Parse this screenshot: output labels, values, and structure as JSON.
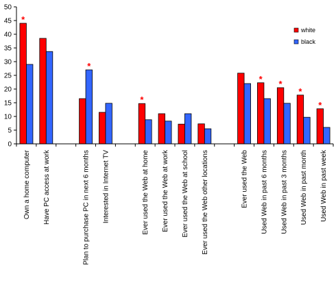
{
  "chart_data": {
    "type": "bar",
    "ylim": [
      0,
      50
    ],
    "ytick_step": 5,
    "grid": false,
    "legend_position": "top-right",
    "categories": [
      "Own a home computer",
      "Have PC access at work",
      "",
      "Plan to purchase PC in next 6 months",
      "Interested in Internet TV",
      "",
      "Ever used the Web at home",
      "Ever used the Web at work",
      "Ever used the Web at school",
      "Ever used the Web other locations",
      "",
      "Ever used the Web",
      "Used Web in past 6 months",
      "Used Web in past 3 months",
      "Used Web in past month",
      "Used Web in past week"
    ],
    "series": [
      {
        "name": "white",
        "color": "#ff0000",
        "values": [
          44,
          38.5,
          null,
          16.5,
          11.5,
          null,
          14.7,
          11,
          7.2,
          7.3,
          null,
          25.8,
          22.3,
          20.5,
          17.8,
          12.8
        ]
      },
      {
        "name": "black",
        "color": "#3366ff",
        "values": [
          29,
          33.7,
          null,
          27,
          14.8,
          null,
          8.8,
          8.3,
          11,
          5.5,
          null,
          22,
          16.5,
          14.8,
          9.7,
          6
        ]
      }
    ],
    "significant_markers": {
      "symbol": "*",
      "color": "#ff0000",
      "items": [
        {
          "category_index": 0,
          "series_index": 0
        },
        {
          "category_index": 3,
          "series_index": 1
        },
        {
          "category_index": 6,
          "series_index": 0
        },
        {
          "category_index": 12,
          "series_index": 0
        },
        {
          "category_index": 13,
          "series_index": 0
        },
        {
          "category_index": 14,
          "series_index": 0
        },
        {
          "category_index": 15,
          "series_index": 0
        }
      ]
    }
  }
}
